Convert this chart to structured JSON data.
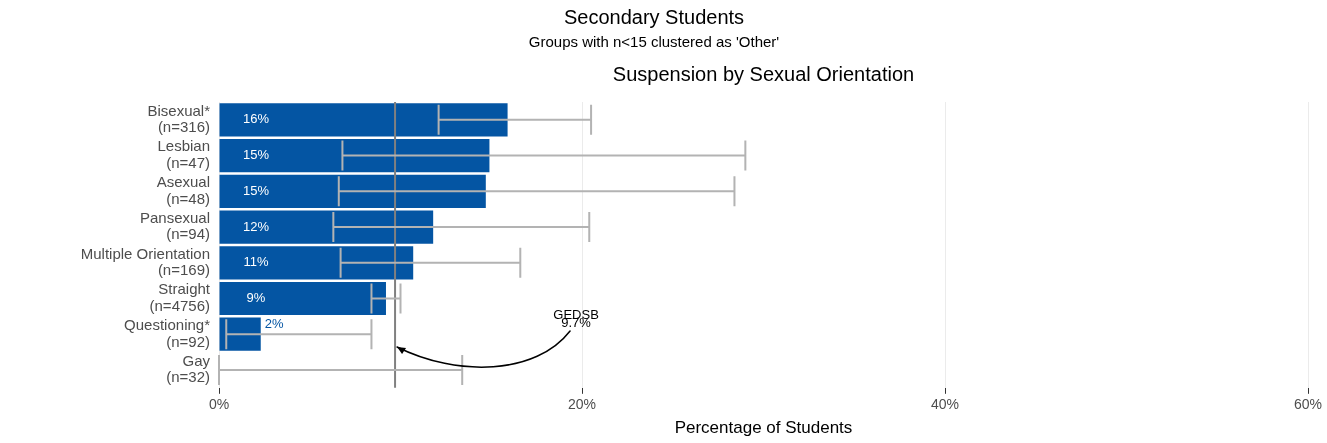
{
  "chart_data": {
    "type": "bar",
    "orientation": "horizontal",
    "title": "Secondary Students",
    "subtitle": "Groups with n<15 clustered as 'Other'",
    "annotations": [
      "Suspension by Sexual Orientation"
    ],
    "xlabel": "Percentage of Students",
    "categories": [
      "Bisexual*\n(n=316)",
      "Lesbian\n(n=47)",
      "Asexual\n(n=48)",
      "Pansexual\n(n=94)",
      "Multiple Orientation\n(n=169)",
      "Straight\n(n=4756)",
      "Questioning*\n(n=92)",
      "Gay\n(n=32)"
    ],
    "values": [
      15.9,
      14.9,
      14.7,
      11.8,
      10.7,
      9.2,
      2.3,
      0
    ],
    "color": "#0455a3",
    "errors": [
      [
        12.1,
        20.5
      ],
      [
        6.8,
        29.0
      ],
      [
        6.6,
        28.4
      ],
      [
        6.3,
        20.4
      ],
      [
        6.7,
        16.6
      ],
      [
        8.4,
        10.0
      ],
      [
        0.4,
        8.4
      ],
      [
        0,
        13.4
      ]
    ],
    "value_labels": [
      "16%",
      "15%",
      "15%",
      "12%",
      "11%",
      "9%",
      "2%",
      null
    ],
    "xlim": [
      0,
      60
    ],
    "xticks": [
      {
        "value": 0,
        "label": "0%"
      },
      {
        "value": 20,
        "label": "20%"
      },
      {
        "value": 40,
        "label": "40%"
      },
      {
        "value": 60,
        "label": "60%"
      }
    ],
    "ref_lines": [
      {
        "axis": "x",
        "value": 9.7,
        "label": "GEDSB\n9.7%",
        "color": "#808080"
      }
    ],
    "grid": "x",
    "legend": false
  }
}
